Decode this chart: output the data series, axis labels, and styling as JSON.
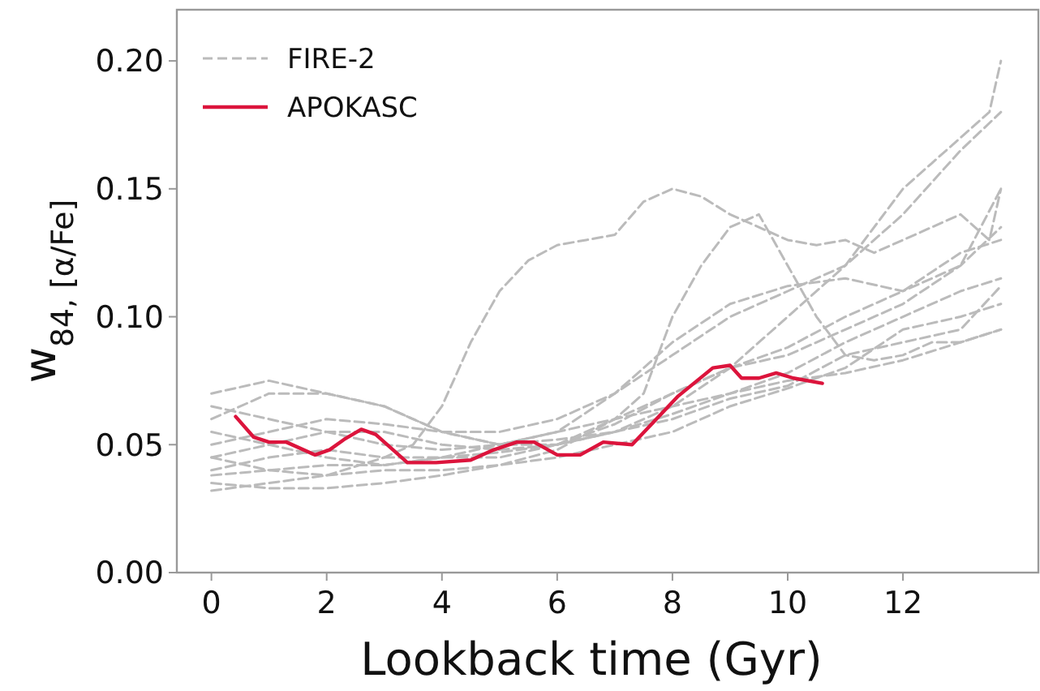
{
  "chart_data": {
    "type": "line",
    "xlabel": "Lookback time (Gyr)",
    "ylabel": "w$_{84, [α/Fe]}$",
    "xlim": [
      -0.6,
      14.35
    ],
    "ylim": [
      0,
      0.22
    ],
    "xticks": [
      0,
      2,
      4,
      6,
      8,
      10,
      12
    ],
    "yticks": [
      {
        "value": 0,
        "label": "0.00"
      },
      {
        "value": 0.05,
        "label": "0.05"
      },
      {
        "value": 0.1,
        "label": "0.10"
      },
      {
        "value": 0.15,
        "label": "0.15"
      },
      {
        "value": 0.2,
        "label": "0.20"
      }
    ],
    "legend": "top left",
    "grid": false,
    "series": [
      {
        "name": "FIRE-2",
        "color": "#bbbbbb",
        "line_style": "dashed",
        "x": [
          0,
          1,
          2,
          3,
          3.5,
          4,
          4.5,
          5,
          5.5,
          6,
          6.5,
          7,
          7.5,
          8,
          8.5,
          9,
          9.5,
          10,
          10.5,
          11,
          11.5,
          12,
          12.5,
          13,
          13.5,
          13.7
        ],
        "values": [
          0.045,
          0.04,
          0.038,
          0.045,
          0.05,
          0.065,
          0.09,
          0.11,
          0.122,
          0.128,
          0.13,
          0.132,
          0.145,
          0.15,
          0.147,
          0.14,
          0.135,
          0.13,
          0.128,
          0.13,
          0.125,
          0.13,
          0.135,
          0.14,
          0.13,
          0.15
        ]
      },
      {
        "color": "#bbbbbb",
        "line_style": "dashed",
        "x": [
          0,
          1,
          2,
          3,
          4,
          5,
          6,
          7,
          7.5,
          8,
          8.5,
          9,
          9.5,
          10,
          10.5,
          11,
          11.5,
          12,
          12.5,
          13,
          13.7
        ],
        "values": [
          0.035,
          0.033,
          0.033,
          0.035,
          0.038,
          0.042,
          0.048,
          0.06,
          0.07,
          0.1,
          0.12,
          0.135,
          0.14,
          0.12,
          0.1,
          0.085,
          0.083,
          0.085,
          0.09,
          0.09,
          0.095
        ]
      },
      {
        "color": "#bbbbbb",
        "line_style": "dashed",
        "x": [
          0,
          1,
          2,
          3,
          4,
          5,
          6,
          7,
          8,
          9,
          10,
          11,
          12,
          12.5,
          13,
          13.5,
          13.7
        ],
        "values": [
          0.07,
          0.075,
          0.07,
          0.065,
          0.055,
          0.05,
          0.05,
          0.055,
          0.065,
          0.08,
          0.1,
          0.12,
          0.15,
          0.16,
          0.17,
          0.18,
          0.2
        ]
      },
      {
        "color": "#bbbbbb",
        "line_style": "dashed",
        "x": [
          0,
          1,
          2,
          3,
          4,
          5,
          6,
          7,
          8,
          9,
          10,
          11,
          12,
          13,
          13.7
        ],
        "values": [
          0.06,
          0.07,
          0.07,
          0.065,
          0.055,
          0.05,
          0.055,
          0.07,
          0.085,
          0.1,
          0.11,
          0.12,
          0.14,
          0.165,
          0.18
        ]
      },
      {
        "color": "#bbbbbb",
        "line_style": "dashed",
        "x": [
          0,
          1,
          2,
          3,
          4,
          5,
          6,
          7,
          8,
          9,
          10,
          11,
          12,
          13,
          13.7
        ],
        "values": [
          0.05,
          0.055,
          0.06,
          0.058,
          0.055,
          0.055,
          0.06,
          0.07,
          0.09,
          0.105,
          0.112,
          0.115,
          0.11,
          0.12,
          0.15
        ]
      },
      {
        "color": "#bbbbbb",
        "line_style": "dashed",
        "x": [
          0,
          1,
          2,
          3,
          4,
          5,
          6,
          7,
          8,
          9,
          10,
          11,
          12,
          13,
          13.7
        ],
        "values": [
          0.045,
          0.05,
          0.055,
          0.055,
          0.05,
          0.048,
          0.05,
          0.058,
          0.07,
          0.08,
          0.088,
          0.1,
          0.11,
          0.125,
          0.13
        ]
      },
      {
        "color": "#bbbbbb",
        "line_style": "dashed",
        "x": [
          0,
          1,
          2,
          3,
          4,
          5,
          6,
          7,
          8,
          9,
          10,
          11,
          12,
          13,
          13.7
        ],
        "values": [
          0.04,
          0.045,
          0.048,
          0.045,
          0.045,
          0.045,
          0.05,
          0.06,
          0.07,
          0.08,
          0.085,
          0.095,
          0.105,
          0.12,
          0.135
        ]
      },
      {
        "color": "#bbbbbb",
        "line_style": "dashed",
        "x": [
          0,
          1,
          2,
          3,
          4,
          5,
          6,
          7,
          8,
          9,
          10,
          11,
          12,
          13,
          13.7
        ],
        "values": [
          0.038,
          0.04,
          0.042,
          0.042,
          0.045,
          0.047,
          0.05,
          0.055,
          0.062,
          0.07,
          0.078,
          0.09,
          0.1,
          0.11,
          0.115
        ]
      },
      {
        "color": "#bbbbbb",
        "line_style": "dashed",
        "x": [
          0,
          1,
          2,
          3,
          4,
          5,
          6,
          7,
          8,
          9,
          10,
          11,
          12,
          13,
          13.7
        ],
        "values": [
          0.055,
          0.05,
          0.045,
          0.042,
          0.045,
          0.05,
          0.055,
          0.06,
          0.065,
          0.07,
          0.075,
          0.078,
          0.083,
          0.09,
          0.095
        ]
      },
      {
        "color": "#bbbbbb",
        "line_style": "dashed",
        "x": [
          0,
          1,
          2,
          3,
          4,
          5,
          6,
          7,
          8,
          9,
          10,
          11,
          12,
          13,
          13.7
        ],
        "values": [
          0.032,
          0.035,
          0.038,
          0.04,
          0.04,
          0.042,
          0.045,
          0.05,
          0.055,
          0.065,
          0.072,
          0.08,
          0.095,
          0.1,
          0.105
        ]
      },
      {
        "color": "#bbbbbb",
        "line_style": "dashed",
        "x": [
          0,
          1,
          2,
          3,
          4,
          5,
          6,
          7,
          8,
          9,
          10,
          11,
          12,
          13,
          13.7
        ],
        "values": [
          0.065,
          0.06,
          0.055,
          0.05,
          0.048,
          0.05,
          0.052,
          0.055,
          0.06,
          0.068,
          0.073,
          0.085,
          0.09,
          0.095,
          0.112
        ]
      },
      {
        "name": "APOKASC",
        "color": "#dc143c",
        "line_style": "solid",
        "x": [
          0.42,
          0.73,
          1.0,
          1.3,
          1.8,
          2.05,
          2.3,
          2.6,
          2.85,
          3.4,
          3.9,
          4.5,
          4.9,
          5.3,
          5.6,
          6.0,
          6.4,
          6.8,
          7.3,
          8.1,
          8.7,
          9.0,
          9.2,
          9.5,
          9.8,
          10.1,
          10.6
        ],
        "values": [
          0.061,
          0.053,
          0.051,
          0.051,
          0.046,
          0.048,
          0.052,
          0.056,
          0.054,
          0.043,
          0.043,
          0.044,
          0.048,
          0.051,
          0.051,
          0.046,
          0.046,
          0.051,
          0.05,
          0.069,
          0.08,
          0.081,
          0.076,
          0.076,
          0.078,
          0.076,
          0.074
        ]
      }
    ]
  }
}
